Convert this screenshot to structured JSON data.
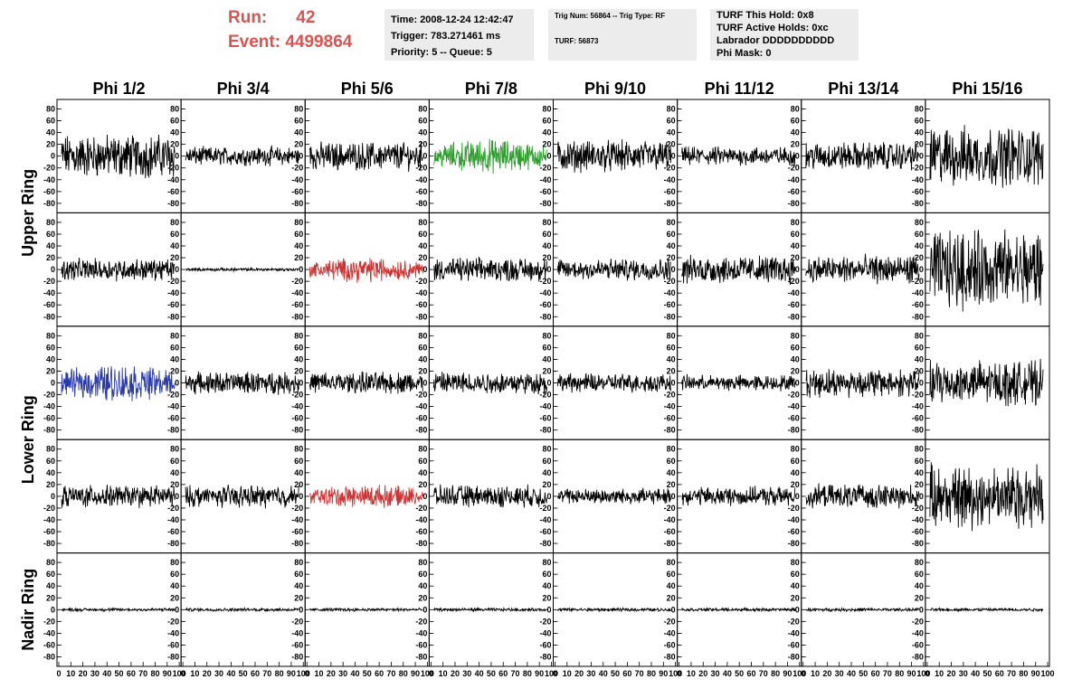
{
  "header": {
    "run_label": "Run:",
    "run_value": "42",
    "event_label": "Event:",
    "event_value": "4499864"
  },
  "info": {
    "box1": [
      "Time: 2008-12-24 12:42:47",
      "Trigger: 783.271461 ms",
      "Priority: 5 -- Queue: 5"
    ],
    "box2": [
      "Trig Num: 56864 -- Trig Type: RF",
      "",
      "TURF: 56873"
    ],
    "box3": [
      "TURF This Hold: 0x8",
      "TURF Active Holds: 0xc",
      "Labrador DDDDDDDDDD",
      "Phi Mask: 0"
    ]
  },
  "colors": {
    "run_text": "#d9534f",
    "trace_default": "#000000",
    "trace_green": "#2e9e2e",
    "trace_red": "#cc3333",
    "trace_blue": "#2a3aa8"
  },
  "chart_data": {
    "type": "line",
    "columns": [
      "Phi 1/2",
      "Phi 3/4",
      "Phi 5/6",
      "Phi 7/8",
      "Phi 9/10",
      "Phi 11/12",
      "Phi 13/14",
      "Phi 15/16"
    ],
    "rings": [
      {
        "label": "Upper Ring",
        "rows": 2
      },
      {
        "label": "Lower Ring",
        "rows": 2
      },
      {
        "label": "Nadir Ring",
        "rows": 1
      }
    ],
    "ylim": [
      -90,
      90
    ],
    "xlim": [
      0,
      100
    ],
    "y_ticks": [
      -80,
      -60,
      -40,
      -20,
      0,
      20,
      40,
      60,
      80
    ],
    "x_tick_labels": [
      "0",
      "10",
      "20",
      "30",
      "40",
      "50",
      "60",
      "70",
      "80",
      "90",
      "100"
    ],
    "samples": 256,
    "amplitudes": [
      [
        28,
        12,
        18,
        22,
        20,
        12,
        18,
        38
      ],
      [
        14,
        2,
        16,
        15,
        14,
        18,
        18,
        50
      ],
      [
        24,
        14,
        14,
        14,
        12,
        10,
        18,
        28
      ],
      [
        14,
        14,
        15,
        14,
        10,
        12,
        15,
        40
      ],
      [
        2,
        2,
        2,
        2,
        2,
        2,
        2,
        2
      ]
    ],
    "highlights": [
      {
        "row": 0,
        "col": 3,
        "color": "green"
      },
      {
        "row": 1,
        "col": 2,
        "color": "red"
      },
      {
        "row": 2,
        "col": 0,
        "color": "blue"
      },
      {
        "row": 3,
        "col": 2,
        "color": "red"
      }
    ]
  }
}
